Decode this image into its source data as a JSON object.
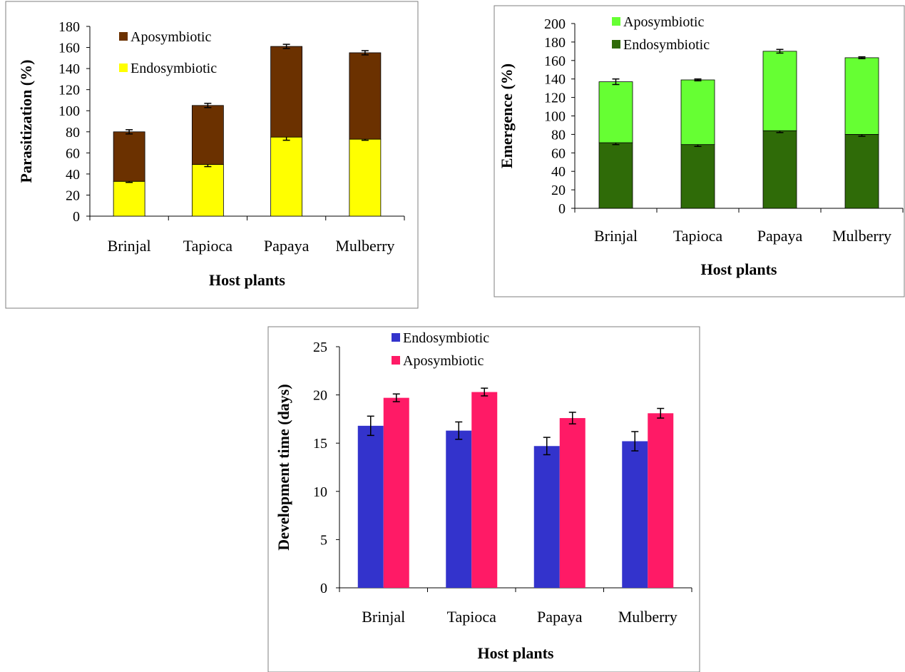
{
  "corner_text": "-----",
  "chart_data": [
    {
      "type": "bar",
      "stacked": true,
      "categories": [
        "Brinjal",
        "Tapioca",
        "Papaya",
        "Mulberry"
      ],
      "xlabel": "Host plants",
      "ylabel": "Parasitization (%)",
      "ylim": [
        0,
        180
      ],
      "yticks": [
        0,
        20,
        40,
        60,
        80,
        100,
        120,
        140,
        160,
        180
      ],
      "series": [
        {
          "name": "Endosymbiotic",
          "color": "#ffff00",
          "values": [
            33,
            49,
            75,
            73
          ],
          "errors": [
            1,
            2,
            3,
            1
          ]
        },
        {
          "name": "Aposymbiotic",
          "color": "#6b3100",
          "values": [
            47,
            56,
            86,
            82
          ],
          "errors": [
            2,
            2,
            2,
            2
          ]
        }
      ],
      "legend": {
        "placement": "top-left",
        "order": [
          "Aposymbiotic",
          "Endosymbiotic"
        ]
      },
      "grid": false
    },
    {
      "type": "bar",
      "stacked": true,
      "categories": [
        "Brinjal",
        "Tapioca",
        "Papaya",
        "Mulberry"
      ],
      "xlabel": "Host plants",
      "ylabel": "Emergence (%)",
      "ylim": [
        0,
        200
      ],
      "yticks": [
        0,
        20,
        40,
        60,
        80,
        100,
        120,
        140,
        160,
        180,
        200
      ],
      "series": [
        {
          "name": "Endosymbiotic",
          "color": "#2f6b08",
          "values": [
            71,
            69,
            84,
            80
          ],
          "errors": [
            2,
            2,
            2,
            2
          ]
        },
        {
          "name": "Aposymbiotic",
          "color": "#66ff33",
          "values": [
            66,
            70,
            86,
            83
          ],
          "errors": [
            3,
            1,
            2,
            1
          ]
        }
      ],
      "legend": {
        "placement": "top-left",
        "order": [
          "Aposymbiotic",
          "Endosymbiotic"
        ]
      },
      "grid": false
    },
    {
      "type": "bar",
      "stacked": false,
      "categories": [
        "Brinjal",
        "Tapioca",
        "Papaya",
        "Mulberry"
      ],
      "xlabel": "Host plants",
      "ylabel": "Development time (days)",
      "ylim": [
        0,
        25
      ],
      "yticks": [
        0,
        5,
        10,
        15,
        20,
        25
      ],
      "series": [
        {
          "name": "Endosymbiotic",
          "color": "#3333cc",
          "values": [
            16.8,
            16.3,
            14.7,
            15.2
          ],
          "errors": [
            1.0,
            0.9,
            0.9,
            1.0
          ]
        },
        {
          "name": "Aposymbiotic",
          "color": "#ff1a66",
          "values": [
            19.7,
            20.3,
            17.6,
            18.1
          ],
          "errors": [
            0.4,
            0.4,
            0.6,
            0.5
          ]
        }
      ],
      "legend": {
        "placement": "top-left",
        "order": [
          "Endosymbiotic",
          "Aposymbiotic"
        ]
      },
      "grid": false
    }
  ]
}
